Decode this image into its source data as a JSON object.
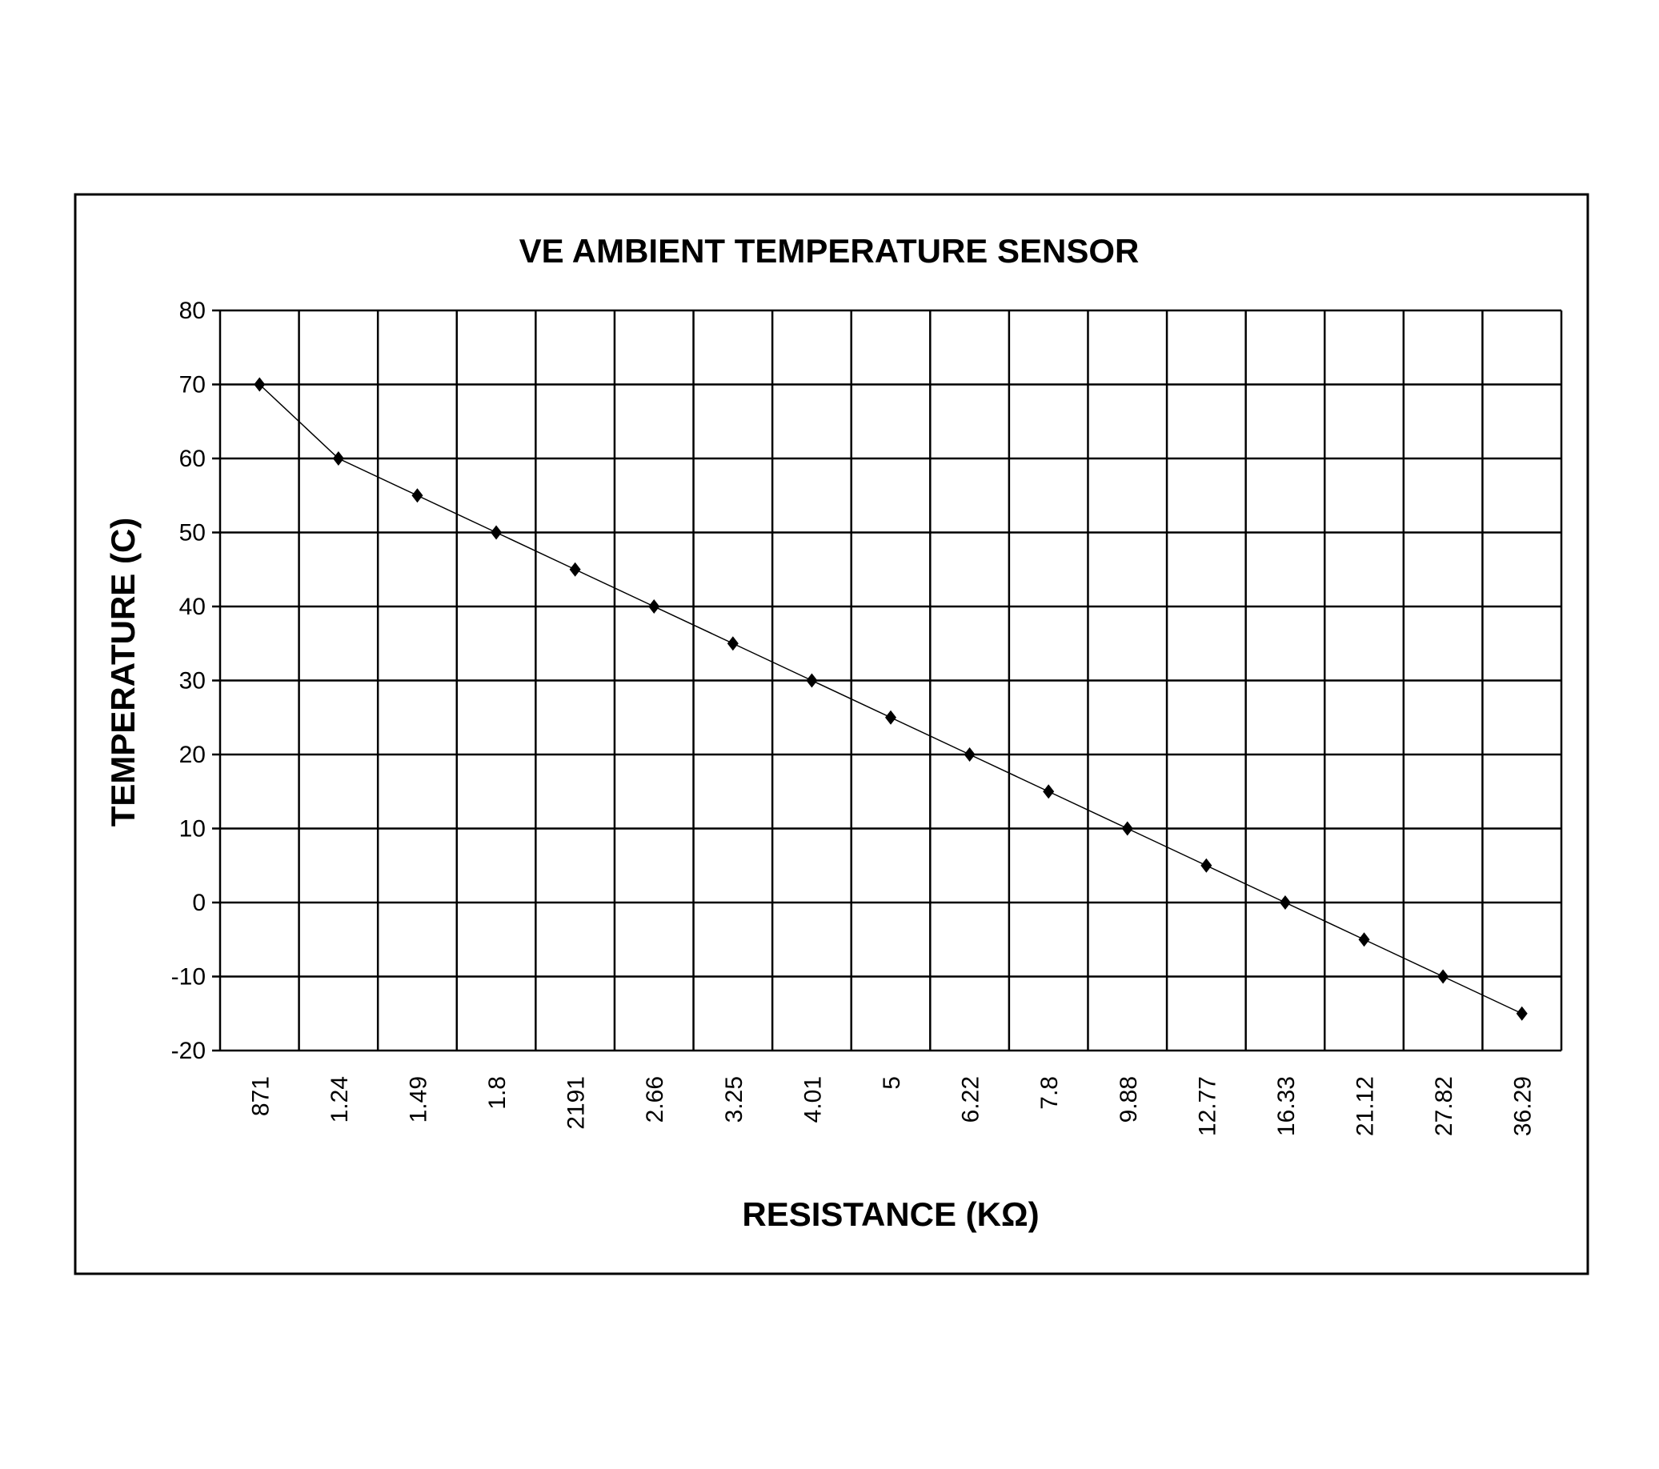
{
  "chart_data": {
    "type": "line",
    "title": "VE AMBIENT TEMPERATURE SENSOR",
    "xlabel": "RESISTANCE (KΩ)",
    "ylabel": "TEMPERATURE (C)",
    "categories": [
      "871",
      "1.24",
      "1.49",
      "1.8",
      "2191",
      "2.66",
      "3.25",
      "4.01",
      "5",
      "6.22",
      "7.8",
      "9.88",
      "12.77",
      "16.33",
      "21.12",
      "27.82",
      "36.29"
    ],
    "values": [
      70,
      60,
      55,
      50,
      45,
      40,
      35,
      30,
      25,
      20,
      15,
      10,
      5,
      0,
      -5,
      -10,
      -15
    ],
    "ylim": [
      -20,
      80
    ],
    "yticks": [
      "80",
      "70",
      "60",
      "50",
      "40",
      "30",
      "20",
      "10",
      "0",
      "-10",
      "-20"
    ],
    "grid": true,
    "marker": "diamond",
    "line_color": "#000000",
    "legend": "none"
  }
}
